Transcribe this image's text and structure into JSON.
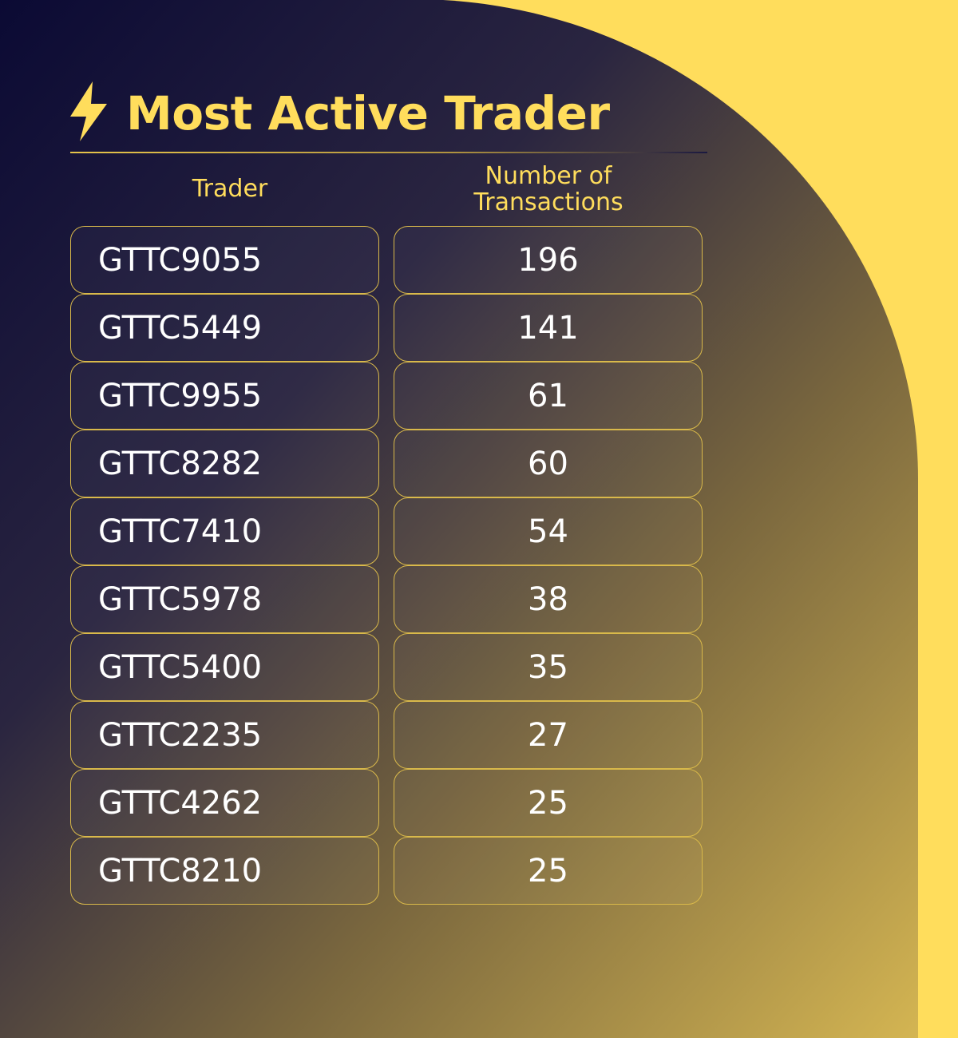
{
  "header": {
    "title": "Most Active Trader"
  },
  "table": {
    "columns": [
      "Trader",
      "Number of Transactions"
    ],
    "rows": [
      [
        "GTTC9055",
        196
      ],
      [
        "GTTC5449",
        141
      ],
      [
        "GTTC9955",
        61
      ],
      [
        "GTTC8282",
        60
      ],
      [
        "GTTC7410",
        54
      ],
      [
        "GTTC5978",
        38
      ],
      [
        "GTTC5400",
        35
      ],
      [
        "GTTC2235",
        27
      ],
      [
        "GTTC4262",
        25
      ],
      [
        "GTTC8210",
        25
      ]
    ]
  }
}
